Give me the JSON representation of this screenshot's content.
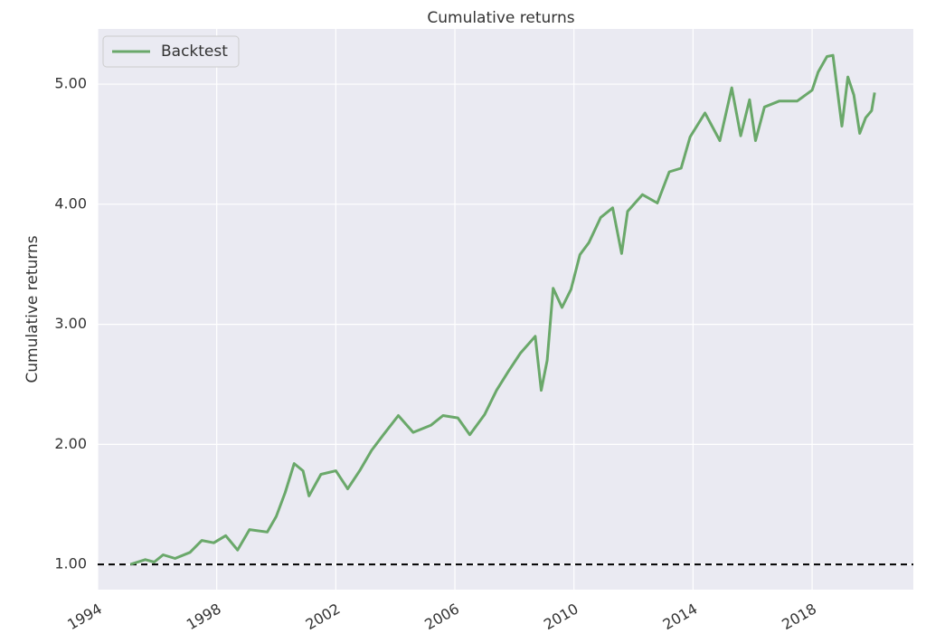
{
  "chart_data": {
    "type": "line",
    "title": "Cumulative returns",
    "ylabel": "Cumulative returns",
    "x": [
      1995.1,
      1995.6,
      1995.9,
      1996.2,
      1996.6,
      1997.1,
      1997.5,
      1997.9,
      1998.3,
      1998.7,
      1999.1,
      1999.7,
      2000.0,
      2000.3,
      2000.6,
      2000.9,
      2001.1,
      2001.5,
      2002.0,
      2002.4,
      2002.8,
      2003.2,
      2003.6,
      2004.1,
      2004.6,
      2005.2,
      2005.6,
      2006.1,
      2006.5,
      2007.0,
      2007.4,
      2007.8,
      2008.2,
      2008.7,
      2008.9,
      2009.1,
      2009.3,
      2009.6,
      2009.9,
      2010.2,
      2010.5,
      2010.9,
      2011.3,
      2011.6,
      2011.8,
      2012.3,
      2012.8,
      2013.2,
      2013.6,
      2013.9,
      2014.4,
      2014.9,
      2015.3,
      2015.6,
      2015.9,
      2016.1,
      2016.4,
      2016.9,
      2017.5,
      2018.0,
      2018.2,
      2018.5,
      2018.7,
      2019.0,
      2019.2,
      2019.4,
      2019.6,
      2019.8,
      2020.0,
      2020.1
    ],
    "series": [
      {
        "name": "Backtest",
        "color": "#6aa86a",
        "values": [
          1.0,
          1.04,
          1.02,
          1.08,
          1.05,
          1.1,
          1.2,
          1.18,
          1.24,
          1.12,
          1.29,
          1.27,
          1.4,
          1.6,
          1.84,
          1.78,
          1.57,
          1.75,
          1.78,
          1.63,
          1.78,
          1.95,
          2.08,
          2.24,
          2.1,
          2.16,
          2.24,
          2.22,
          2.08,
          2.25,
          2.45,
          2.61,
          2.76,
          2.9,
          2.45,
          2.7,
          3.3,
          3.14,
          3.29,
          3.58,
          3.68,
          3.89,
          3.97,
          3.59,
          3.94,
          4.08,
          4.01,
          4.27,
          4.3,
          4.56,
          4.76,
          4.53,
          4.97,
          4.57,
          4.87,
          4.53,
          4.81,
          4.86,
          4.86,
          4.95,
          5.1,
          5.23,
          5.24,
          4.65,
          5.06,
          4.91,
          4.59,
          4.72,
          4.78,
          4.93
        ]
      }
    ],
    "baseline": 1,
    "xlim": [
      1994,
      2021.4
    ],
    "xticks": [
      1994,
      1998,
      2002,
      2006,
      2010,
      2014,
      2018
    ],
    "ylim": [
      0.79,
      5.46
    ],
    "yticks": [
      {
        "value": 1,
        "label": "1.00"
      },
      {
        "value": 2,
        "label": "2.00"
      },
      {
        "value": 3,
        "label": "3.00"
      },
      {
        "value": 4,
        "label": "4.00"
      },
      {
        "value": 5,
        "label": "5.00"
      }
    ],
    "grid": true,
    "legend": "upper left"
  }
}
